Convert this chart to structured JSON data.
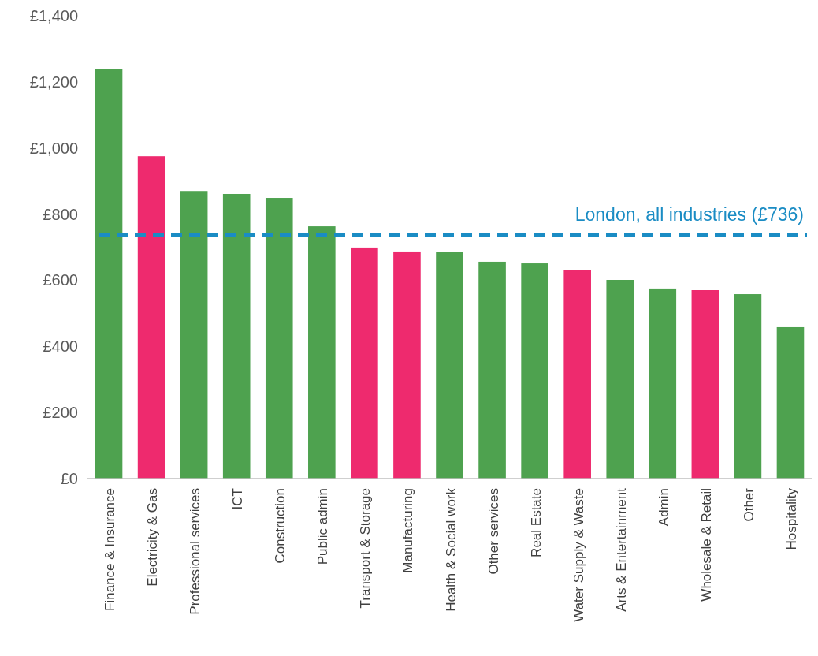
{
  "chart_data": {
    "type": "bar",
    "categories": [
      "Finance & Insurance",
      "Electricity & Gas",
      "Professional services",
      "ICT",
      "Construction",
      "Public admin",
      "Transport & Storage",
      "Manufacturing",
      "Health & Social work",
      "Other services",
      "Real Estate",
      "Water Supply & Waste",
      "Arts & Entertainment",
      "Admin",
      "Wholesale & Retail",
      "Other",
      "Hospitality"
    ],
    "values": [
      1240,
      975,
      870,
      861,
      849,
      763,
      699,
      687,
      686,
      656,
      651,
      632,
      601,
      575,
      570,
      558,
      458
    ],
    "colors": [
      "#4ea24f",
      "#ee2a6e",
      "#4ea24f",
      "#4ea24f",
      "#4ea24f",
      "#4ea24f",
      "#ee2a6e",
      "#ee2a6e",
      "#4ea24f",
      "#4ea24f",
      "#4ea24f",
      "#ee2a6e",
      "#4ea24f",
      "#4ea24f",
      "#ee2a6e",
      "#4ea24f",
      "#4ea24f"
    ],
    "ylim": [
      0,
      1400
    ],
    "yticks": [
      {
        "value": 0,
        "label": "£0"
      },
      {
        "value": 200,
        "label": "£200"
      },
      {
        "value": 400,
        "label": "£400"
      },
      {
        "value": 600,
        "label": "£600"
      },
      {
        "value": 800,
        "label": "£800"
      },
      {
        "value": 1000,
        "label": "£1,000"
      },
      {
        "value": 1200,
        "label": "£1,200"
      },
      {
        "value": 1400,
        "label": "£1,400"
      }
    ],
    "grid": false,
    "ref_lines": [
      {
        "axis": "y",
        "value": 736,
        "label": "London, all industries (£736)",
        "color": "#1a8cc4",
        "line_style": "dashed"
      }
    ]
  }
}
